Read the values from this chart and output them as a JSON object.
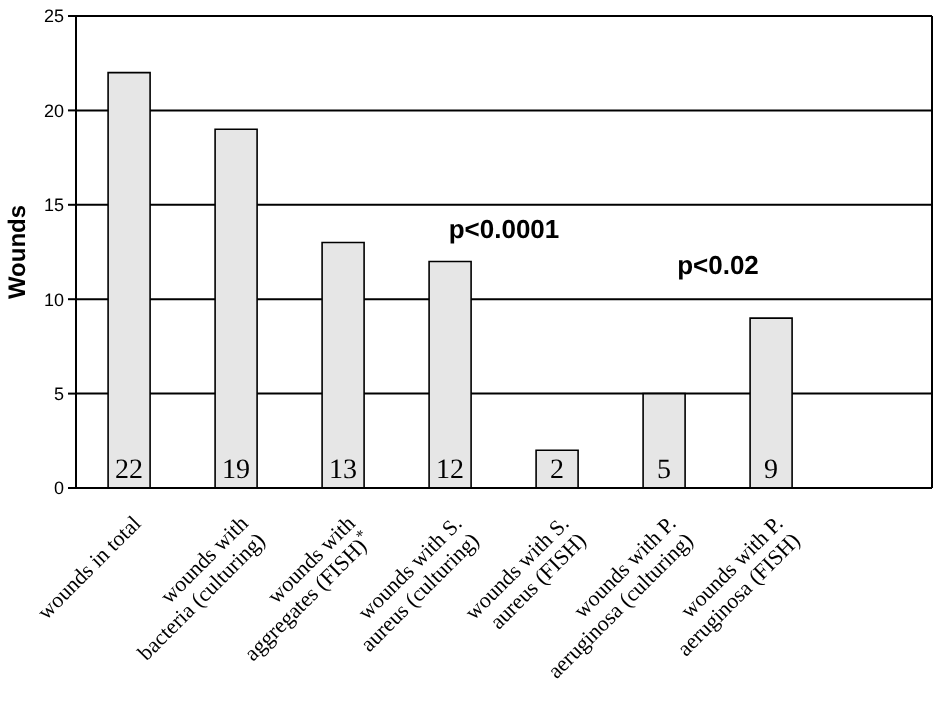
{
  "chart_data": {
    "type": "bar",
    "ylabel": "Wounds",
    "categories": [
      "wounds in total",
      "wounds with bacteria (culturing)",
      "wounds with aggregates (FISH)$^{*}$",
      "wounds with S. aureus (culturing)",
      "wounds with S. aureus (FISH)",
      "wounds with P. aeruginosa (culturing)",
      "wounds with P. aeruginosa (FISH)",
      null
    ],
    "values": [
      22,
      19,
      13,
      12,
      2,
      5,
      9,
      null
    ],
    "color": "#e6e6e6",
    "ylim": [
      0,
      25
    ],
    "yticks": [
      0,
      5,
      10,
      15,
      20,
      25
    ],
    "grid": "y",
    "data_labels": true,
    "annotations": [
      "p<0.0001",
      "p<0.02"
    ]
  }
}
